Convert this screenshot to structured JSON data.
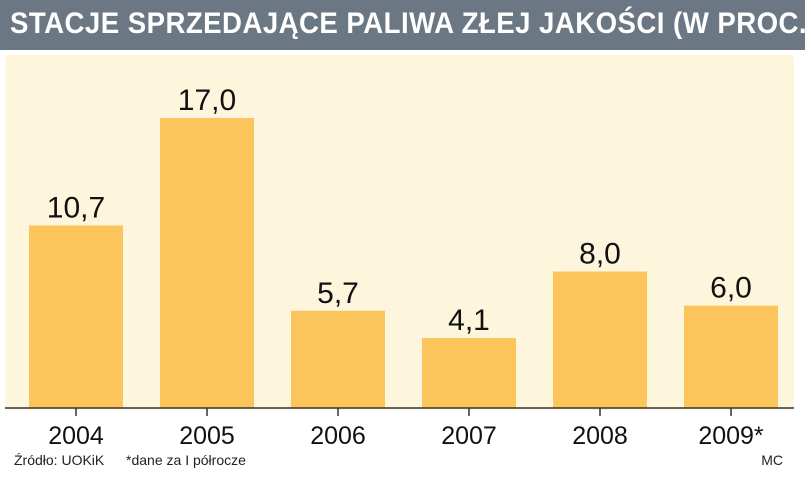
{
  "chart_data": {
    "type": "bar",
    "title": "STACJE SPRZEDAJĄCE PALIWA ZŁEJ JAKOŚCI (W PROC.)",
    "categories": [
      "2004",
      "2005",
      "2006",
      "2007",
      "2008",
      "2009*"
    ],
    "values": [
      10.7,
      17.0,
      5.7,
      4.1,
      8.0,
      6.0
    ],
    "value_labels": [
      "10,7",
      "17,0",
      "5,7",
      "4,1",
      "8,0",
      "6,0"
    ],
    "ylim": [
      0,
      17
    ],
    "grid": false,
    "bar_color": "#fbc55b",
    "background_color": "#fdf5dc",
    "title_bar_color": "#6b7883"
  },
  "footer": {
    "source": "Źródło: UOKiK",
    "note": "*dane za I półrocze",
    "credit": "MC"
  }
}
